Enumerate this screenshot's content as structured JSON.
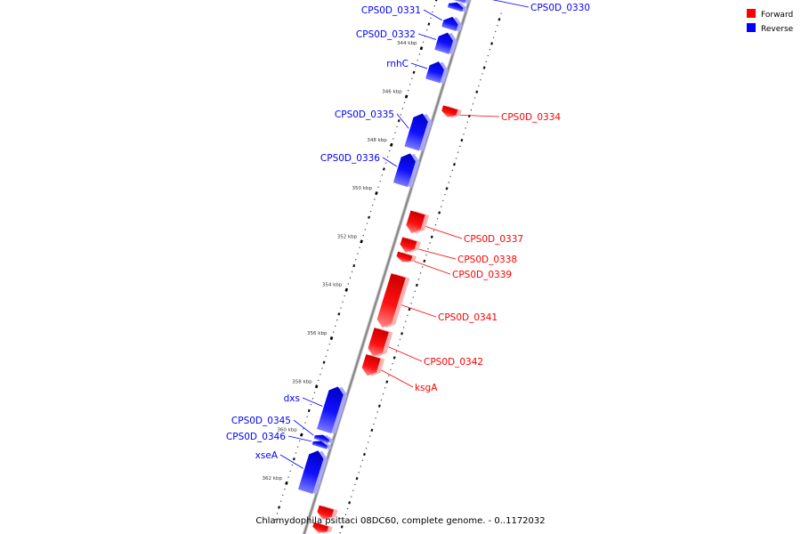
{
  "caption": "Chlamydophila psittaci 08DC60, complete genome. - 0..1172032",
  "legend": [
    {
      "label": "Forward",
      "color": "#ff0000"
    },
    {
      "label": "Reverse",
      "color": "#0000ff"
    }
  ],
  "colors": {
    "forward": "#ff0000",
    "reverse": "#0000ff",
    "backbone": "#888888"
  },
  "ticks": [
    {
      "kbp": 344,
      "label": "344 kbp"
    },
    {
      "kbp": 346,
      "label": "346 kbp"
    },
    {
      "kbp": 348,
      "label": "348 kbp"
    },
    {
      "kbp": 350,
      "label": "350 kbp"
    },
    {
      "kbp": 352,
      "label": "352 kbp"
    },
    {
      "kbp": 354,
      "label": "354 kbp"
    },
    {
      "kbp": 356,
      "label": "356 kbp"
    },
    {
      "kbp": 358,
      "label": "358 kbp"
    },
    {
      "kbp": 360,
      "label": "360 kbp"
    },
    {
      "kbp": 362,
      "label": "362 kbp"
    }
  ],
  "genes": [
    {
      "name": "",
      "strand": "reverse",
      "start_kbp": 341.85,
      "end_kbp": 342.15
    },
    {
      "name": "CPS0D_0330",
      "strand": "reverse",
      "start_kbp": 341.2,
      "end_kbp": 341.8
    },
    {
      "name": "CPS0D_0331",
      "strand": "reverse",
      "start_kbp": 342.45,
      "end_kbp": 342.95
    },
    {
      "name": "CPS0D_0332",
      "strand": "reverse",
      "start_kbp": 343.1,
      "end_kbp": 343.9
    },
    {
      "name": "rnhC",
      "strand": "reverse",
      "start_kbp": 344.3,
      "end_kbp": 345.1
    },
    {
      "name": "CPS0D_0334",
      "strand": "forward",
      "start_kbp": 345.9,
      "end_kbp": 346.3
    },
    {
      "name": "CPS0D_0335",
      "strand": "reverse",
      "start_kbp": 346.45,
      "end_kbp": 347.9
    },
    {
      "name": "CPS0D_0336",
      "strand": "reverse",
      "start_kbp": 348.1,
      "end_kbp": 349.4
    },
    {
      "name": "CPS0D_0337",
      "strand": "forward",
      "start_kbp": 350.25,
      "end_kbp": 351.1
    },
    {
      "name": "CPS0D_0338",
      "strand": "forward",
      "start_kbp": 351.35,
      "end_kbp": 351.9
    },
    {
      "name": "CPS0D_0339",
      "strand": "forward",
      "start_kbp": 351.95,
      "end_kbp": 352.3
    },
    {
      "name": "CPS0D_0341",
      "strand": "forward",
      "start_kbp": 352.85,
      "end_kbp": 355.0
    },
    {
      "name": "CPS0D_0342",
      "strand": "forward",
      "start_kbp": 355.1,
      "end_kbp": 356.2
    },
    {
      "name": "ksgA",
      "strand": "forward",
      "start_kbp": 356.2,
      "end_kbp": 357.0
    },
    {
      "name": "dxs",
      "strand": "reverse",
      "start_kbp": 357.75,
      "end_kbp": 359.6
    },
    {
      "name": "CPS0D_0345",
      "strand": "reverse",
      "start_kbp": 359.75,
      "end_kbp": 360.0
    },
    {
      "name": "CPS0D_0346",
      "strand": "reverse",
      "start_kbp": 360.0,
      "end_kbp": 360.25
    },
    {
      "name": "xseA",
      "strand": "reverse",
      "start_kbp": 360.4,
      "end_kbp": 362.1
    },
    {
      "name": "",
      "strand": "forward",
      "start_kbp": 362.45,
      "end_kbp": 362.95
    },
    {
      "name": "",
      "strand": "forward",
      "start_kbp": 363.15,
      "end_kbp": 363.5
    }
  ]
}
